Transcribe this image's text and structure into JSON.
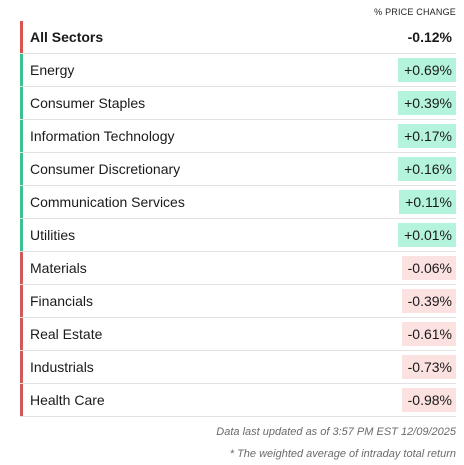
{
  "header": {
    "column_label": "% PRICE CHANGE"
  },
  "rows": [
    {
      "name": "All Sectors",
      "change": "-0.12%",
      "direction": "negative",
      "total": true
    },
    {
      "name": "Energy",
      "change": "+0.69%",
      "direction": "positive"
    },
    {
      "name": "Consumer Staples",
      "change": "+0.39%",
      "direction": "positive"
    },
    {
      "name": "Information Technology",
      "change": "+0.17%",
      "direction": "positive"
    },
    {
      "name": "Consumer Discretionary",
      "change": "+0.16%",
      "direction": "positive"
    },
    {
      "name": "Communication Services",
      "change": "+0.11%",
      "direction": "positive"
    },
    {
      "name": "Utilities",
      "change": "+0.01%",
      "direction": "positive"
    },
    {
      "name": "Materials",
      "change": "-0.06%",
      "direction": "negative"
    },
    {
      "name": "Financials",
      "change": "-0.39%",
      "direction": "negative"
    },
    {
      "name": "Real Estate",
      "change": "-0.61%",
      "direction": "negative"
    },
    {
      "name": "Industrials",
      "change": "-0.73%",
      "direction": "negative"
    },
    {
      "name": "Health Care",
      "change": "-0.98%",
      "direction": "negative"
    }
  ],
  "colors": {
    "positive_bar": "#3dbf8e",
    "positive_bg": "#b4f3dc",
    "negative_bar": "#d05a5a",
    "negative_bg": "#fbe1e0"
  },
  "footer": {
    "updated": "Data last updated as of 3:57 PM EST 12/09/2025",
    "note": "* The weighted average of intraday total return"
  }
}
